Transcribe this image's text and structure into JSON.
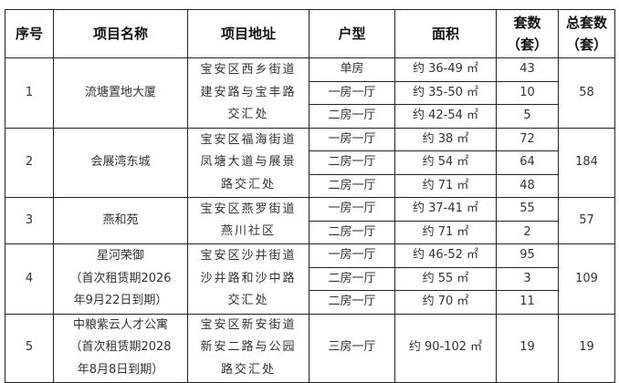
{
  "headers": [
    "序号",
    "项目名称",
    "项目地址",
    "户型",
    "面积",
    "套数（套）",
    "总套数（套）"
  ],
  "header_lines": {
    "count": [
      "套数",
      "（套）"
    ],
    "total": [
      "总套数",
      "（套）"
    ]
  },
  "projects": [
    {
      "no": "1",
      "name": [
        "流塘置地大厦"
      ],
      "address": [
        "宝安区西乡街道",
        "建安路与宝丰路",
        "交汇处"
      ],
      "total": "58",
      "units": [
        {
          "type": "单房",
          "area": "约 36-49 ㎡",
          "count": "43"
        },
        {
          "type": "一房一厅",
          "area": "约 35-50 ㎡",
          "count": "10"
        },
        {
          "type": "二房一厅",
          "area": "约 42-54 ㎡",
          "count": "5"
        }
      ]
    },
    {
      "no": "2",
      "name": [
        "会展湾东城"
      ],
      "address": [
        "宝安区福海街道",
        "凤塘大道与展景",
        "路交汇处"
      ],
      "total": "184",
      "units": [
        {
          "type": "一房一厅",
          "area": "约 38 ㎡",
          "count": "72"
        },
        {
          "type": "二房一厅",
          "area": "约 54 ㎡",
          "count": "64"
        },
        {
          "type": "二房一厅",
          "area": "约 71 ㎡",
          "count": "48"
        }
      ]
    },
    {
      "no": "3",
      "name": [
        "燕和苑"
      ],
      "address": [
        "宝安区燕罗街道",
        "燕川社区"
      ],
      "total": "57",
      "units": [
        {
          "type": "一房一厅",
          "area": "约 37-41 ㎡",
          "count": "55"
        },
        {
          "type": "二房一厅",
          "area": "约 71 ㎡",
          "count": "2"
        }
      ]
    },
    {
      "no": "4",
      "name": [
        "星河荣御",
        "（首次租赁期2026",
        "年9月22日到期）"
      ],
      "address": [
        "宝安区沙井街道",
        "沙井路和沙中路",
        "交汇处"
      ],
      "total": "109",
      "units": [
        {
          "type": "一房一厅",
          "area": "约 46-52 ㎡",
          "count": "95"
        },
        {
          "type": "二房一厅",
          "area": "约 55 ㎡",
          "count": "3"
        },
        {
          "type": "二房一厅",
          "area": "约 70 ㎡",
          "count": "11"
        }
      ]
    },
    {
      "no": "5",
      "name": [
        "中粮紫云人才公寓",
        "（首次租赁期2028",
        "年8月8日到期）"
      ],
      "address": [
        "宝安区新安街道",
        "新安二路与公园",
        "路交汇处"
      ],
      "total": "19",
      "units": [
        {
          "type": "三房一厅",
          "area": "约 90-102 ㎡",
          "count": "19"
        }
      ]
    }
  ]
}
